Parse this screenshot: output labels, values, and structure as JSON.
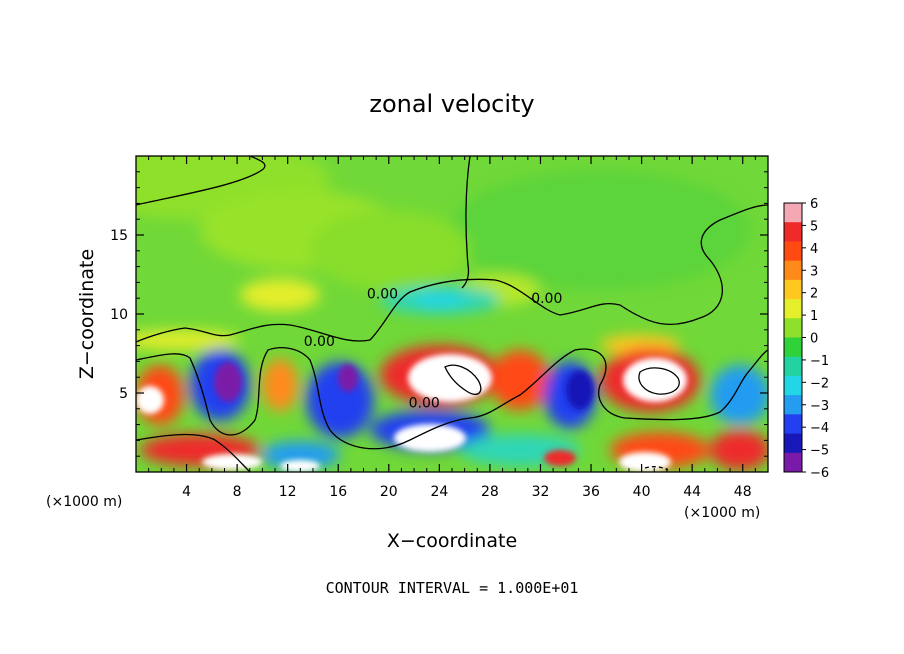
{
  "chart_data": {
    "type": "heatmap",
    "title": "zonal velocity",
    "xlabel": "X−coordinate",
    "ylabel": "Z−coordinate",
    "x_unit_left": "(×1000 m)",
    "x_unit_right": "(×1000 m)",
    "xlim": [
      0,
      50
    ],
    "ylim": [
      0,
      20
    ],
    "x_ticks": [
      4,
      8,
      12,
      16,
      20,
      24,
      28,
      32,
      36,
      40,
      44,
      48
    ],
    "y_ticks": [
      5,
      10,
      15
    ],
    "colorbar": {
      "min": -6,
      "max": 6,
      "ticks": [
        6,
        5,
        4,
        3,
        2,
        1,
        0,
        -1,
        -2,
        -3,
        -4,
        -5,
        -6
      ],
      "tick_labels": [
        "6",
        "5",
        "4",
        "3",
        "2",
        "1",
        "0",
        "−1",
        "−2",
        "−3",
        "−4",
        "−5",
        "−6"
      ],
      "colors": [
        "#f4a8b4",
        "#ee2a2a",
        "#ff4a12",
        "#ff8a1a",
        "#ffc81e",
        "#e4ee2a",
        "#8ee02a",
        "#30d23a",
        "#22d2a0",
        "#22d6e6",
        "#249cf0",
        "#2240f0",
        "#1818b8",
        "#7a1aa8"
      ]
    },
    "contour_labels": [
      {
        "text": "0.00",
        "x": 14.5,
        "y": 8.3
      },
      {
        "text": "0.00",
        "x": 19.5,
        "y": 11.3
      },
      {
        "text": "0.00",
        "x": 32.5,
        "y": 11.0
      },
      {
        "text": "0.00",
        "x": 22.8,
        "y": 4.4
      }
    ],
    "footer": "CONTOUR INTERVAL = 1.000E+01"
  }
}
